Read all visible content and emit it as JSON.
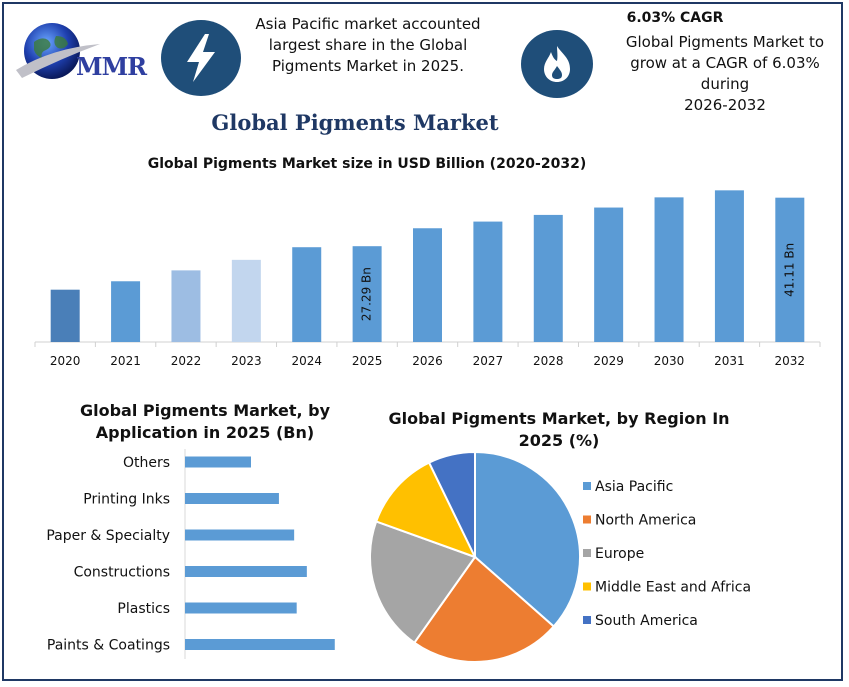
{
  "header": {
    "logo_text": "MMR",
    "callout_left": [
      "Asia Pacific market accounted",
      "largest share in the Global",
      "Pigments Market in 2025."
    ],
    "cagr_title": "6.03% CAGR",
    "callout_right": [
      "Global Pigments Market to",
      "grow at a CAGR of 6.03% during",
      "2026-2032"
    ],
    "icon_left": "lightning-icon",
    "icon_right": "flame-icon",
    "icon_color": "#1f4e79"
  },
  "main_title": "Global Pigments Market",
  "chart_data": [
    {
      "type": "bar",
      "title": "Global Pigments Market size in USD Billion (2020-2032)",
      "categories": [
        "2020",
        "2021",
        "2022",
        "2023",
        "2024",
        "2025",
        "2026",
        "2027",
        "2028",
        "2029",
        "2030",
        "2031",
        "2032"
      ],
      "values": [
        14.9,
        17.3,
        20.4,
        23.4,
        27.0,
        27.29,
        32.4,
        34.3,
        36.2,
        38.3,
        41.2,
        43.2,
        41.11
      ],
      "data_labels": {
        "5": "27.29 Bn",
        "12": "41.11 Bn"
      },
      "colors": [
        "#4a7fb8",
        "#5b9bd5",
        "#9dbde3",
        "#c2d6ee",
        "#5b9bd5",
        "#5b9bd5",
        "#5b9bd5",
        "#5b9bd5",
        "#5b9bd5",
        "#5b9bd5",
        "#5b9bd5",
        "#5b9bd5",
        "#5b9bd5"
      ],
      "ylim": [
        0,
        47
      ]
    },
    {
      "type": "bar",
      "orientation": "horizontal",
      "title": [
        "Global Pigments Market, by",
        "Application in 2025 (Bn)"
      ],
      "categories": [
        "Others",
        "Printing Inks",
        "Paper & Specialty",
        "Constructions",
        "Plastics",
        "Paints & Coatings"
      ],
      "values": [
        2.6,
        3.7,
        4.3,
        4.8,
        4.4,
        5.9
      ],
      "xlim": [
        0,
        6.5
      ],
      "color": "#5b9bd5"
    },
    {
      "type": "pie",
      "title": [
        "Global Pigments Market, by Region In",
        "2025 (%)"
      ],
      "labels": [
        "Asia Pacific",
        "North America",
        "Europe",
        "Middle East and Africa",
        "South America"
      ],
      "values": [
        36.5,
        23.3,
        20.7,
        12.3,
        7.2
      ],
      "colors": [
        "#5b9bd5",
        "#ed7d31",
        "#a5a5a5",
        "#ffc000",
        "#4472c4"
      ],
      "legend_position": "right"
    }
  ]
}
